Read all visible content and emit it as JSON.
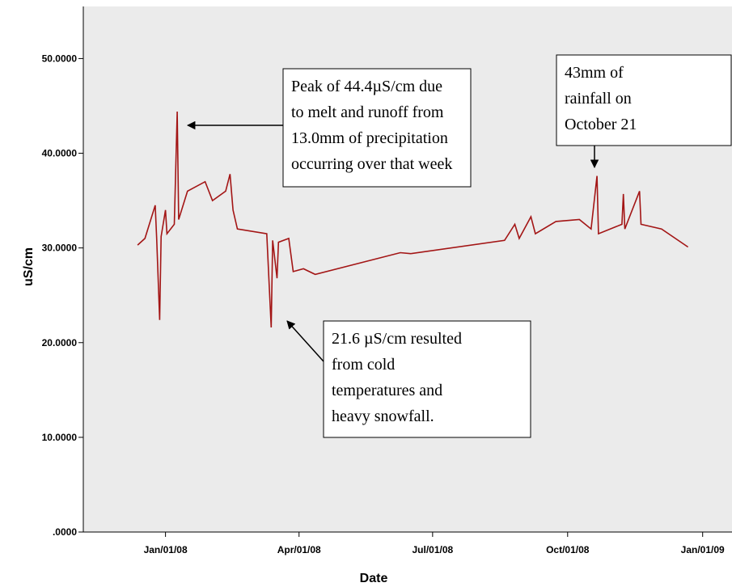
{
  "chart_data": {
    "type": "line",
    "x_label": "Date",
    "y_label": "uS/cm",
    "x": [
      "2007-12-13",
      "2007-12-18",
      "2007-12-25",
      "2007-12-26",
      "2007-12-28",
      "2007-12-29",
      "2008-01-01",
      "2008-01-02",
      "2008-01-07",
      "2008-01-09",
      "2008-01-10",
      "2008-01-16",
      "2008-01-28",
      "2008-02-02",
      "2008-02-11",
      "2008-02-14",
      "2008-02-16",
      "2008-02-19",
      "2008-03-10",
      "2008-03-13",
      "2008-03-14",
      "2008-03-17",
      "2008-03-18",
      "2008-03-25",
      "2008-03-28",
      "2008-04-04",
      "2008-04-12",
      "2008-06-09",
      "2008-06-16",
      "2008-08-19",
      "2008-08-26",
      "2008-08-29",
      "2008-09-06",
      "2008-09-09",
      "2008-09-23",
      "2008-10-09",
      "2008-10-17",
      "2008-10-21",
      "2008-10-22",
      "2008-11-07",
      "2008-11-08",
      "2008-11-09",
      "2008-11-19",
      "2008-11-20",
      "2008-12-04",
      "2008-12-22"
    ],
    "series": [
      {
        "color": "#a31515",
        "values": [
          30.3,
          31,
          34.5,
          31,
          22.4,
          31.2,
          34,
          31.5,
          32.5,
          44.4,
          33,
          36,
          37,
          35,
          36,
          37.8,
          34,
          32,
          31.5,
          21.6,
          30.8,
          26.8,
          30.6,
          31,
          27.5,
          27.8,
          27.2,
          29.5,
          29.4,
          30.8,
          32.5,
          31,
          33.3,
          31.5,
          32.8,
          33,
          32,
          37.6,
          31.5,
          32.5,
          35.7,
          32,
          36,
          32.5,
          32,
          30.1
        ]
      }
    ],
    "xlim": [
      "2007-11-06",
      "2009-01-21"
    ],
    "xticks": [
      {
        "value": "2008-01-01",
        "label": "Jan/01/08"
      },
      {
        "value": "2008-04-01",
        "label": "Apr/01/08"
      },
      {
        "value": "2008-07-01",
        "label": "Jul/01/08"
      },
      {
        "value": "2008-10-01",
        "label": "Oct/01/08"
      },
      {
        "value": "2009-01-01",
        "label": "Jan/01/09"
      }
    ],
    "ylim": [
      0,
      55.5
    ],
    "yticks": [
      {
        "value": 0,
        "label": ".0000"
      },
      {
        "value": 10,
        "label": "10.0000"
      },
      {
        "value": 20,
        "label": "20.0000"
      },
      {
        "value": 30,
        "label": "30.0000"
      },
      {
        "value": 40,
        "label": "40.0000"
      },
      {
        "value": 50,
        "label": "50.0000"
      }
    ],
    "annotations": [
      {
        "lines": [
          "Peak of 44.4µS/cm due",
          "to melt and runoff from",
          "13.0mm of precipitation",
          "occurring over that week"
        ]
      },
      {
        "lines": [
          "43mm of",
          "rainfall on",
          "October 21"
        ]
      },
      {
        "lines": [
          "21.6 µS/cm resulted",
          "from cold",
          "temperatures and",
          "heavy snowfall."
        ]
      }
    ]
  }
}
